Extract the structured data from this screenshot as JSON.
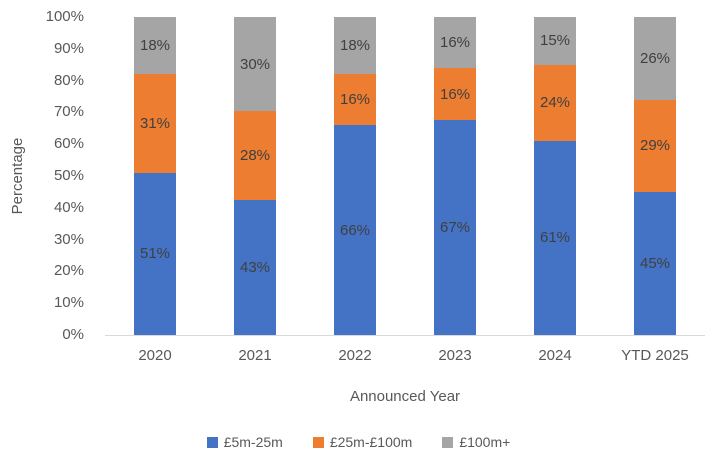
{
  "chart_data": {
    "type": "bar",
    "stacked": true,
    "percent_stacked": true,
    "title": "",
    "xlabel": "Announced Year",
    "ylabel": "Percentage",
    "categories": [
      "2020",
      "2021",
      "2022",
      "2023",
      "2024",
      "YTD 2025"
    ],
    "series": [
      {
        "name": "£5m-25m",
        "color": "#4472C4",
        "values": [
          51,
          43,
          66,
          67,
          61,
          45
        ]
      },
      {
        "name": "£25m-£100m",
        "color": "#ED7D31",
        "values": [
          31,
          28,
          16,
          16,
          24,
          29
        ]
      },
      {
        "name": "£100m+",
        "color": "#A5A5A5",
        "values": [
          18,
          30,
          18,
          16,
          15,
          26
        ]
      }
    ],
    "data_label_suffix": "%",
    "y_ticks": [
      0,
      10,
      20,
      30,
      40,
      50,
      60,
      70,
      80,
      90,
      100
    ],
    "y_tick_suffix": "%",
    "ylim": [
      0,
      100
    ],
    "grid": false,
    "legend_position": "bottom"
  },
  "colors": {
    "axis_text": "#595959",
    "data_label_text": "#404040",
    "axis_line": "#D9D9D9",
    "background": "#FFFFFF"
  }
}
